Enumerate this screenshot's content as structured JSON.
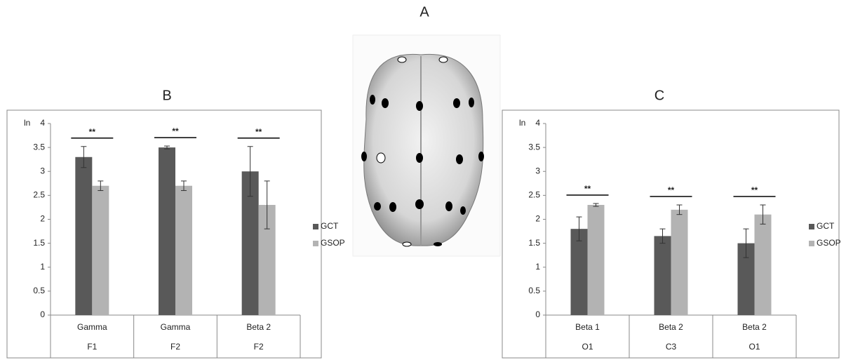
{
  "panel_label": "A",
  "chart_data": [
    {
      "type": "bar",
      "title": "B",
      "y_label": "ln",
      "categories": [
        "Gamma",
        "Gamma",
        "Beta 2"
      ],
      "groups": [
        "F1",
        "F2",
        "F2"
      ],
      "series": [
        {
          "name": "GCT",
          "color": "#595959",
          "values": [
            3.3,
            3.5,
            3.0
          ],
          "errors": [
            0.22,
            0.03,
            0.52
          ]
        },
        {
          "name": "GSOP",
          "color": "#b3b3b3",
          "values": [
            2.7,
            2.7,
            2.3
          ],
          "errors": [
            0.1,
            0.1,
            0.5
          ]
        }
      ],
      "significance": [
        "**",
        "**",
        "**"
      ],
      "ylim": [
        0,
        4
      ],
      "yticks": [
        0,
        0.5,
        1,
        1.5,
        2,
        2.5,
        3,
        3.5,
        4
      ],
      "grid": false,
      "legend": "right"
    },
    {
      "type": "bar",
      "title": "C",
      "y_label": "ln",
      "categories": [
        "Beta 1",
        "Beta 2",
        "Beta 2"
      ],
      "groups": [
        "O1",
        "C3",
        "O1"
      ],
      "series": [
        {
          "name": "GCT",
          "color": "#595959",
          "values": [
            1.8,
            1.65,
            1.5
          ],
          "errors": [
            0.25,
            0.15,
            0.3
          ]
        },
        {
          "name": "GSOP",
          "color": "#b3b3b3",
          "values": [
            2.3,
            2.2,
            2.1
          ],
          "errors": [
            0.03,
            0.1,
            0.2
          ]
        }
      ],
      "significance": [
        "**",
        "**",
        "**"
      ],
      "ylim": [
        0,
        4
      ],
      "yticks": [
        0,
        0.5,
        1,
        1.5,
        2,
        2.5,
        3,
        3.5,
        4
      ],
      "grid": false,
      "legend": "right"
    }
  ]
}
